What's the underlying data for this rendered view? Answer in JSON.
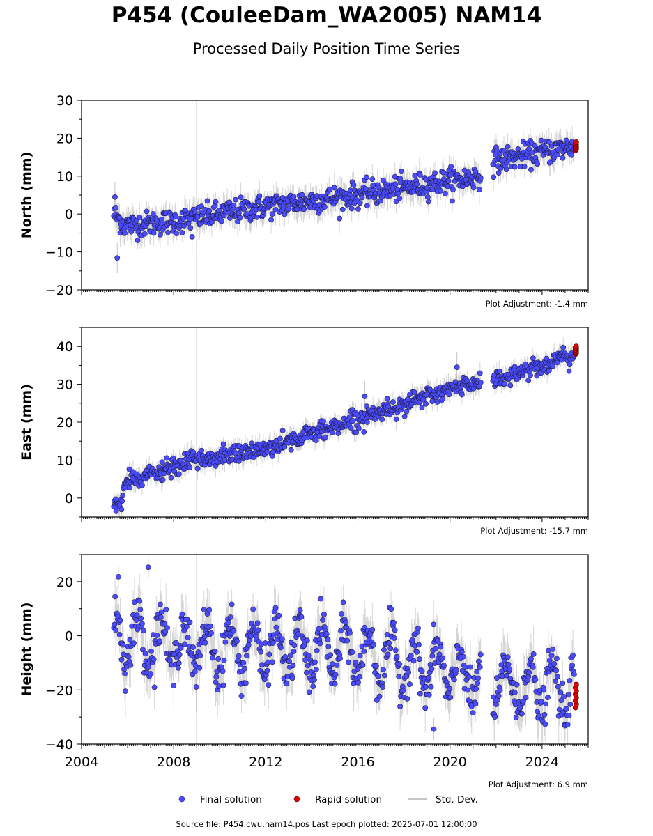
{
  "title": "P454 (CouleeDam_WA2005) NAM14",
  "subtitle": "Processed Daily Position Time Series",
  "source_line": "Source file: P454.cwu.nam14.pos  Last epoch plotted: 2025-07-01 12:00:00",
  "legend": {
    "final": "Final solution",
    "rapid": "Rapid solution",
    "std": "Std. Dev."
  },
  "colors": {
    "final": "#4b4bff",
    "rapid": "#e60000",
    "std": "#b4b4b4",
    "event_line": "#cfcfcf"
  },
  "chart_data": [
    {
      "type": "scatter",
      "ylabel": "North (mm)",
      "ylim": [
        -20,
        30
      ],
      "yticks": [
        -20,
        -10,
        0,
        10,
        20,
        30
      ],
      "xlim": [
        2004.0,
        2026.0
      ],
      "adjustment": "Plot Adjustment: -1.4 mm",
      "event_line_x": 2009.0,
      "series": [
        {
          "trend_start": 2005.4,
          "trend_end": 2025.5,
          "knots": [
            [
              2005.4,
              0
            ],
            [
              2005.9,
              -3
            ],
            [
              2008.0,
              -2
            ],
            [
              2012.0,
              2
            ],
            [
              2016.0,
              5
            ],
            [
              2021.3,
              10
            ],
            [
              2021.9,
              14
            ],
            [
              2025.5,
              18
            ]
          ],
          "noise": 1.6
        },
        {
          "outliers": [
            [
              2005.55,
              -11.6
            ],
            [
              2005.45,
              4.5
            ],
            [
              2008.8,
              -6.0
            ]
          ]
        },
        {
          "rapid": [
            [
              2025.4,
              18.5
            ],
            [
              2025.45,
              16.8
            ],
            [
              2025.5,
              19.0
            ]
          ]
        }
      ]
    },
    {
      "type": "scatter",
      "ylabel": "East (mm)",
      "ylim": [
        -5,
        45
      ],
      "yticks": [
        0,
        10,
        20,
        30,
        40
      ],
      "xlim": [
        2004.0,
        2026.0
      ],
      "adjustment": "Plot Adjustment: -15.7 mm",
      "event_line_x": 2009.0,
      "series": [
        {
          "knots": [
            [
              2005.4,
              -1
            ],
            [
              2005.7,
              -2
            ],
            [
              2005.9,
              4
            ],
            [
              2009.0,
              10
            ],
            [
              2012.0,
              13
            ],
            [
              2016.0,
              21
            ],
            [
              2021.3,
              31
            ],
            [
              2021.9,
              31
            ],
            [
              2025.5,
              38
            ]
          ],
          "noise": 1.2
        },
        {
          "outliers": [
            [
              2005.5,
              -3.5
            ],
            [
              2016.3,
              26.8
            ],
            [
              2020.3,
              34.5
            ]
          ]
        },
        {
          "rapid": [
            [
              2025.4,
              40.0
            ],
            [
              2025.45,
              38.0
            ],
            [
              2025.5,
              39.0
            ]
          ]
        }
      ]
    },
    {
      "type": "scatter",
      "ylabel": "Height (mm)",
      "ylim": [
        -40,
        30
      ],
      "yticks": [
        -40,
        -20,
        0,
        20
      ],
      "xlim": [
        2004.0,
        2026.0
      ],
      "xticks": [
        2004,
        2008,
        2012,
        2016,
        2020,
        2024
      ],
      "adjustment": "Plot Adjustment: 6.9 mm",
      "event_line_x": 2009.0,
      "series": [
        {
          "knots": [
            [
              2005.4,
              0
            ],
            [
              2009.0,
              -4
            ],
            [
              2016.0,
              -6
            ],
            [
              2021.3,
              -16
            ],
            [
              2021.9,
              -18
            ],
            [
              2025.5,
              -20
            ]
          ],
          "seasonal_amp": 9,
          "noise": 4.0
        },
        {
          "outliers": [
            [
              2005.6,
              21.8
            ],
            [
              2006.9,
              25.3
            ],
            [
              2019.3,
              -34.5
            ]
          ]
        },
        {
          "rapid": [
            [
              2025.4,
              -18.0
            ],
            [
              2025.45,
              -22.0
            ],
            [
              2025.5,
              -26.5
            ]
          ]
        }
      ]
    }
  ]
}
